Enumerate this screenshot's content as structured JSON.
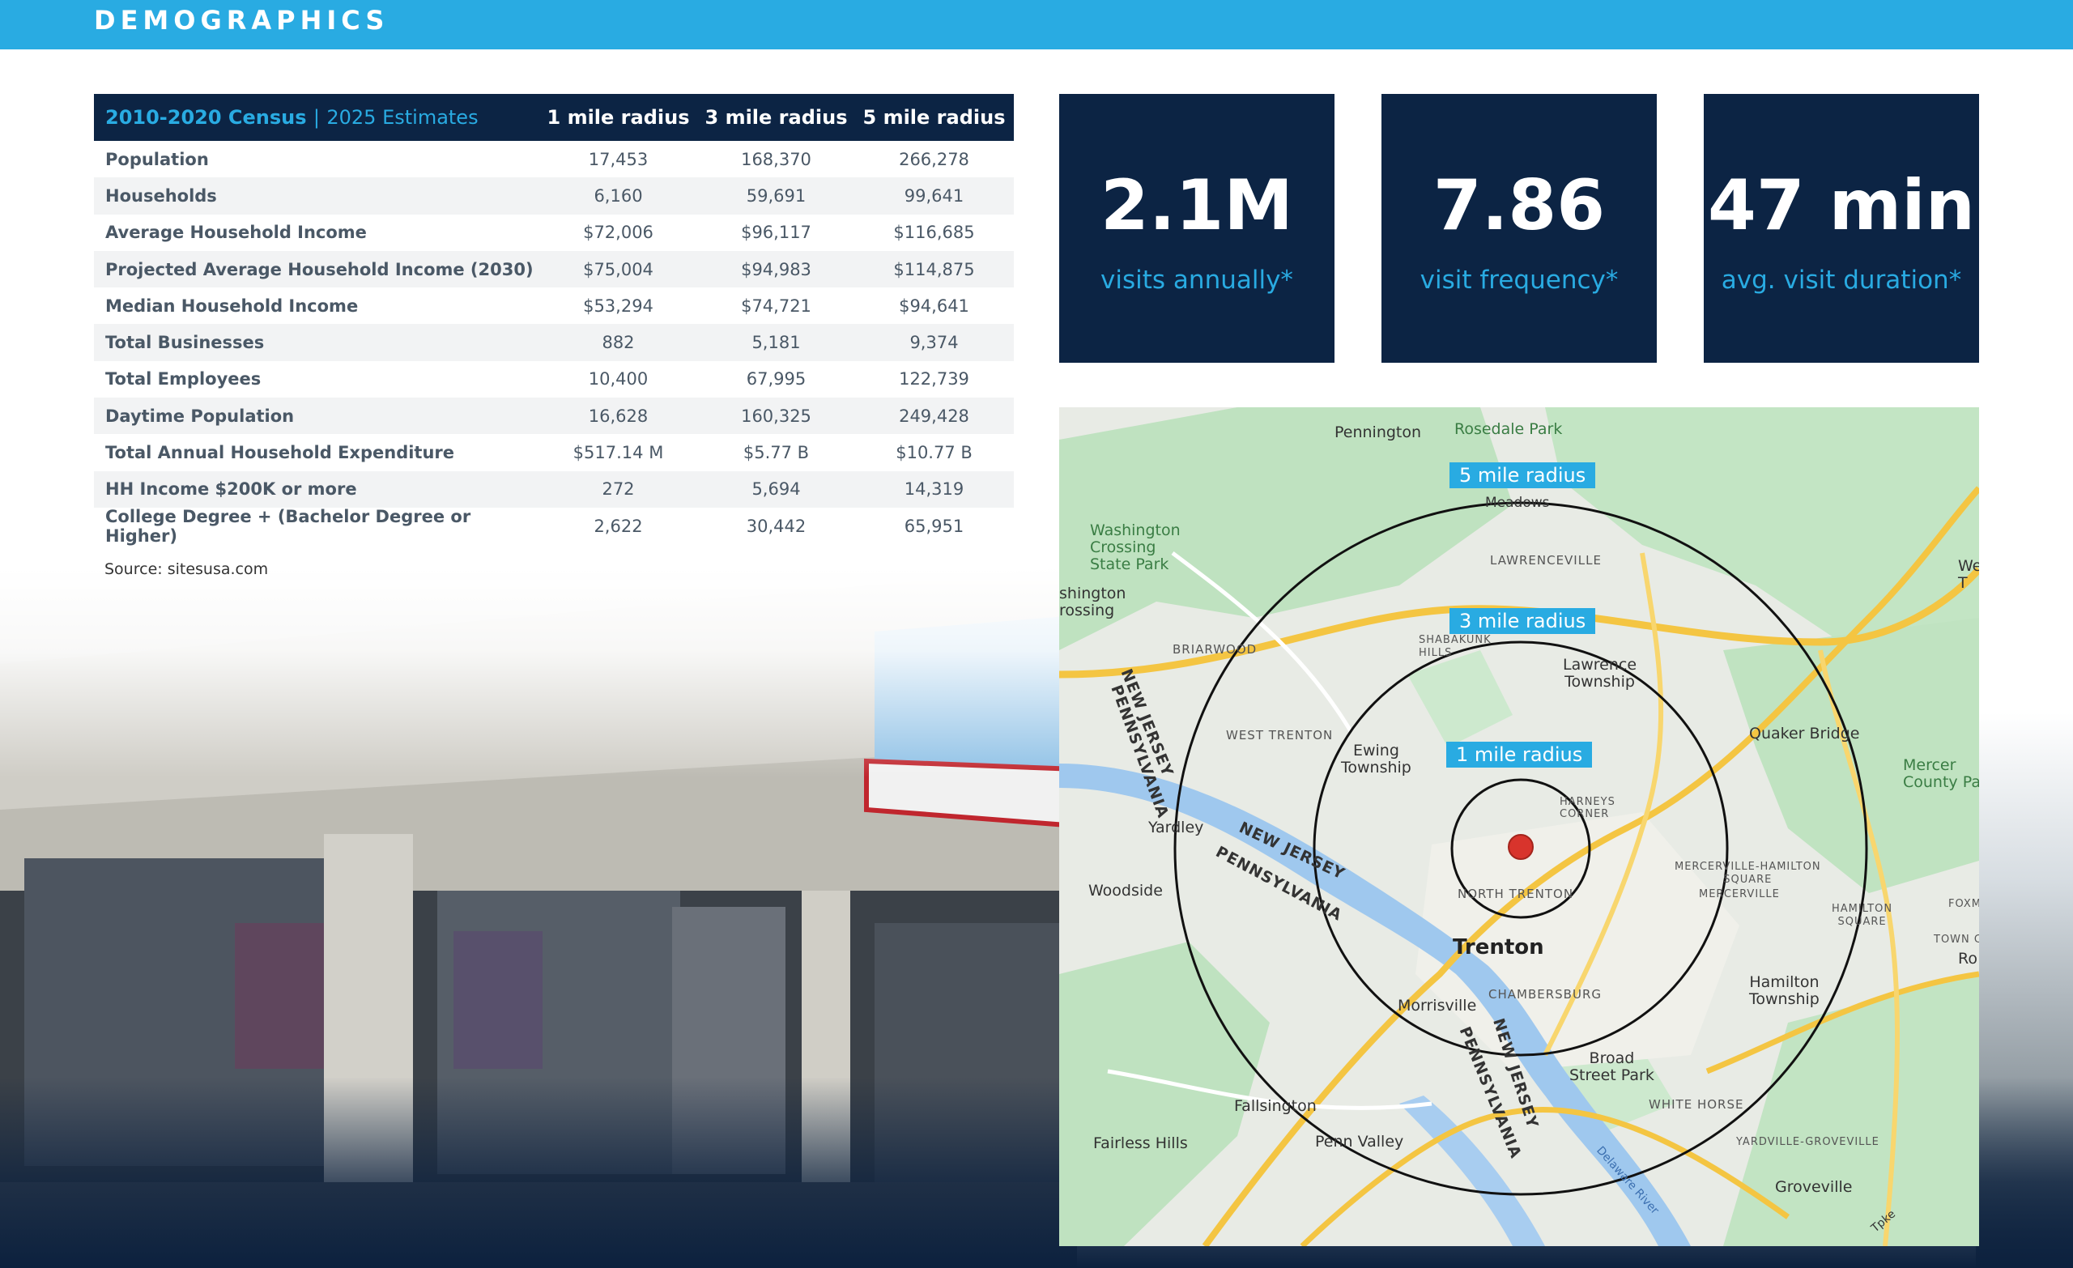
{
  "header": {
    "title": "DEMOGRAPHICS"
  },
  "table": {
    "header": {
      "census": "2010-2020 Census",
      "separator": "|",
      "estimates": "2025 Estimates",
      "col1": "1 mile radius",
      "col2": "3 mile radius",
      "col3": "5 mile radius"
    },
    "rows": [
      {
        "label": "Population",
        "r1": "17,453",
        "r3": "168,370",
        "r5": "266,278"
      },
      {
        "label": "Households",
        "r1": "6,160",
        "r3": "59,691",
        "r5": "99,641"
      },
      {
        "label": "Average Household Income",
        "r1": "$72,006",
        "r3": "$96,117",
        "r5": "$116,685"
      },
      {
        "label": "Projected Average Household Income (2030)",
        "r1": "$75,004",
        "r3": "$94,983",
        "r5": "$114,875"
      },
      {
        "label": "Median Household Income",
        "r1": "$53,294",
        "r3": "$74,721",
        "r5": "$94,641"
      },
      {
        "label": "Total Businesses",
        "r1": "882",
        "r3": "5,181",
        "r5": "9,374"
      },
      {
        "label": "Total Employees",
        "r1": "10,400",
        "r3": "67,995",
        "r5": "122,739"
      },
      {
        "label": "Daytime Population",
        "r1": "16,628",
        "r3": "160,325",
        "r5": "249,428"
      },
      {
        "label": "Total Annual Household Expenditure",
        "r1": "$517.14 M",
        "r3": "$5.77 B",
        "r5": "$10.77 B"
      },
      {
        "label": "HH Income $200K or more",
        "r1": "272",
        "r3": "5,694",
        "r5": "14,319"
      },
      {
        "label": "College Degree + (Bachelor Degree or Higher)",
        "r1": "2,622",
        "r3": "30,442",
        "r5": "65,951"
      }
    ],
    "source": "Source: sitesusa.com"
  },
  "stats": [
    {
      "value": "2.1M",
      "label": "visits annually*"
    },
    {
      "value": "7.86",
      "label": "visit frequency*"
    },
    {
      "value": "47 min",
      "label": "avg. visit duration*"
    }
  ],
  "map": {
    "radius_tags": {
      "r5": "5 mile radius",
      "r3": "3 mile radius",
      "r1": "1 mile radius"
    },
    "places": {
      "pennington": "Pennington",
      "rosedale": "Rosedale Park",
      "washington": "Washington\nCrossing\nState Park",
      "washington_cut": "shington\nrossing",
      "briarwood": "BRIARWOOD",
      "west_trenton": "WEST TRENTON",
      "ewing": "Ewing\nTownship",
      "lawrenceville": "LAWRENCEVILLE",
      "lawrence": "Lawrence\nTownship",
      "quaker": "Quaker Bridge",
      "mercer": "Mercer\nCounty Pa",
      "yardley": "Yardley",
      "woodside": "Woodside",
      "harneys": "HARNEYS\nCORNER",
      "north_trenton": "NORTH TRENTON",
      "trenton": "Trenton",
      "morrisville": "Morrisville",
      "chambersburg": "CHAMBERSBURG",
      "mercerville_hs": "MERCERVILLE-HAMILTON\nSQUARE",
      "mercerville": "MERCERVILLE",
      "hamilton_sq": "HAMILTON\nSQUARE",
      "hamilton": "Hamilton\nTownship",
      "broad": "Broad\nStreet Park",
      "white_horse": "WHITE HORSE",
      "fallsington": "Fallsington",
      "fairless": "Fairless Hills",
      "penn_valley": "Penn Valley",
      "yardville": "YARDVILLE-GROVEVILLE",
      "groveville": "Groveville",
      "meadows": "Meadows",
      "shabakunk": "SHABAKUNK\nHILLS",
      "nj_1": "NEW JERSEY",
      "pa_1": "PENNSYLVANIA",
      "nj_2": "NEW JERSEY",
      "pa_2": "PENNSYLVANIA",
      "nj_3": "NEW JERSEY",
      "pa_3": "PENNSYLVANIA",
      "we": "We\nT",
      "foxm": "FOXM",
      "town_co": "TOWN CO",
      "ro": "Ro",
      "delaware": "Delaware River",
      "tpke": "Tpke"
    }
  },
  "colors": {
    "accent": "#29abe2",
    "navy": "#0c2444"
  }
}
